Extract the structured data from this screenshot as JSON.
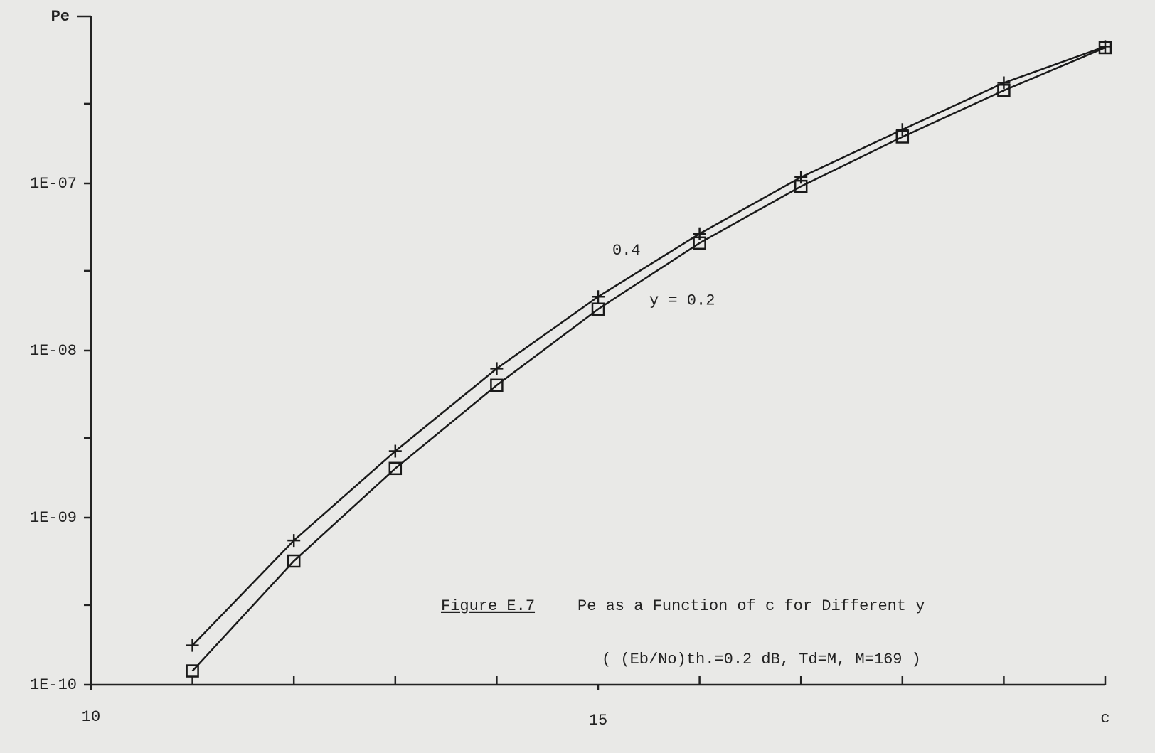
{
  "chart_data": {
    "type": "line",
    "x_label": "c",
    "y_label": "Pe",
    "x": [
      11,
      12,
      13,
      14,
      15,
      16,
      17,
      18,
      19,
      20
    ],
    "series": [
      {
        "name": "0.4",
        "marker": "plus",
        "color": "#1a1a1a",
        "values": [
          1.72e-10,
          7.3e-10,
          2.5e-09,
          7.8e-09,
          2.1e-08,
          5e-08,
          1.09e-07,
          2.1e-07,
          4e-07,
          6.6e-07
        ]
      },
      {
        "name": "y = 0.2",
        "marker": "square",
        "color": "#1a1a1a",
        "values": [
          1.21e-10,
          5.5e-10,
          1.97e-09,
          6.2e-09,
          1.77e-08,
          4.4e-08,
          9.6e-08,
          1.9e-07,
          3.6e-07,
          6.5e-07
        ]
      }
    ],
    "xlim": [
      10,
      20
    ],
    "xticks": [
      10,
      15
    ],
    "minor_xticks": [
      11,
      12,
      13,
      14,
      16,
      17,
      18,
      19
    ],
    "ylim": [
      1e-10,
      1e-06
    ],
    "ylog": true,
    "yticks": [
      {
        "value": 1e-10,
        "label": "1E-10"
      },
      {
        "value": 1e-09,
        "label": "1E-09"
      },
      {
        "value": 1e-08,
        "label": "1E-08"
      },
      {
        "value": 1e-07,
        "label": "1E-07"
      }
    ],
    "minor_yticks": [
      3e-10,
      3e-09,
      3e-08,
      3e-07
    ],
    "caption": {
      "number": "Figure E.7",
      "text": "Pe as a Function of c for Different y",
      "subtext": "( (Eb/No)th.=0.2 dB, Td=M, M=169 )"
    }
  }
}
